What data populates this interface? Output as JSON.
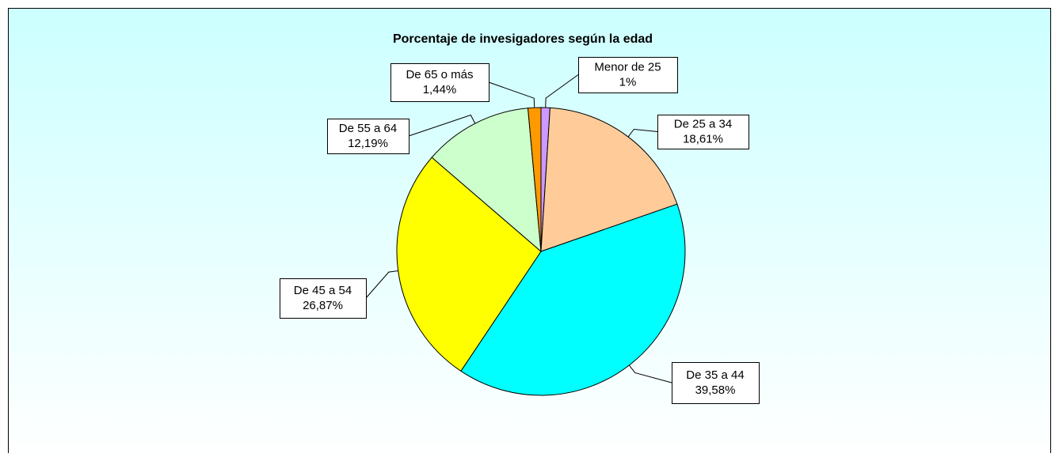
{
  "chart_data": {
    "type": "pie",
    "title": "Porcentaje de invesigadores según la edad",
    "categories": [
      "Menor de 25",
      "De 25 a 34",
      "De 35 a 44",
      "De 45 a 54",
      "De 55 a 64",
      "De 65 o más"
    ],
    "values": [
      1,
      18.61,
      39.58,
      26.87,
      12.19,
      1.44
    ],
    "value_labels": [
      "1%",
      "18,61%",
      "39,58%",
      "26,87%",
      "12,19%",
      "1,44%"
    ],
    "colors": [
      "#cc99ff",
      "#ffcc99",
      "#00ffff",
      "#ffff00",
      "#ccffcc",
      "#ff9900"
    ]
  }
}
